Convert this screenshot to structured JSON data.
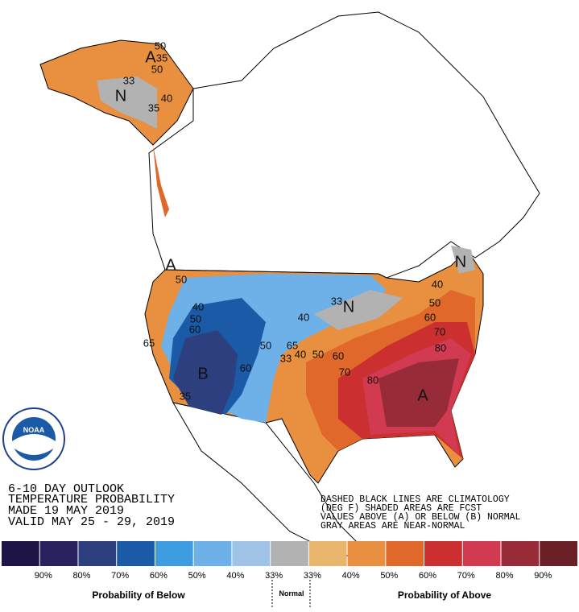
{
  "header": {
    "lines": [
      "6-10 DAY OUTLOOK",
      "TEMPERATURE PROBABILITY",
      "MADE  19 MAY 2019",
      "VALID  MAY 25 - 29, 2019"
    ]
  },
  "notes": [
    "DASHED BLACK LINES ARE CLIMATOLOGY",
    "(DEG F) SHADED AREAS ARE FCST",
    "VALUES ABOVE (A) OR BELOW (B) NORMAL",
    "GRAY AREAS ARE NEAR-NORMAL"
  ],
  "logo": "NOAA",
  "map_labels": [
    "50",
    "35",
    "50",
    "A",
    "N",
    "33",
    "40",
    "35",
    "A",
    "50",
    "40",
    "50",
    "60",
    "65",
    "B",
    "35",
    "60",
    "50",
    "40",
    "N",
    "33",
    "65",
    "40",
    "50",
    "33",
    "60",
    "70",
    "80",
    "A",
    "40",
    "50",
    "60",
    "70",
    "80",
    "N"
  ],
  "legend": {
    "colors": [
      "#1e1446",
      "#29225f",
      "#2d3f7f",
      "#1a5aa6",
      "#3d9de0",
      "#6eb0e8",
      "#9fc3e6",
      "#b2b2b2",
      "#e8b56c",
      "#e8903f",
      "#e0682a",
      "#cc2f2f",
      "#d23a52",
      "#972c38",
      "#6b2027"
    ],
    "labels": [
      "90%",
      "80%",
      "70%",
      "60%",
      "50%",
      "40%",
      "33%",
      "33%",
      "40%",
      "50%",
      "60%",
      "70%",
      "80%",
      "90%"
    ],
    "below": "Probability of Below",
    "normal": "Normal",
    "above": "Probability of Above"
  }
}
